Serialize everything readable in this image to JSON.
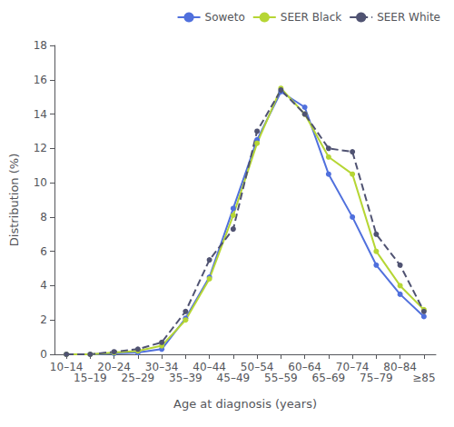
{
  "chart_data": {
    "type": "line",
    "xlabel": "Age at diagnosis (years)",
    "ylabel": "Distribution (%)",
    "categories": [
      "10–14",
      "15–19",
      "20–24",
      "25–29",
      "30–34",
      "35–39",
      "40–44",
      "45–49",
      "50–54",
      "55–59",
      "60–64",
      "65–69",
      "70–74",
      "75–79",
      "80–84",
      "≥85"
    ],
    "series": [
      {
        "name": "Soweto",
        "line_style": "solid",
        "marker": "circle",
        "values": [
          0.0,
          0.0,
          0.05,
          0.1,
          0.3,
          2.1,
          4.5,
          8.5,
          12.5,
          15.3,
          14.4,
          10.5,
          8.0,
          5.2,
          3.5,
          2.2
        ]
      },
      {
        "name": "SEER Black",
        "line_style": "solid",
        "marker": "circle",
        "values": [
          0.0,
          0.0,
          0.1,
          0.2,
          0.5,
          2.0,
          4.4,
          8.1,
          12.3,
          15.5,
          14.0,
          11.5,
          10.5,
          6.0,
          4.0,
          2.6
        ]
      },
      {
        "name": "SEER White",
        "line_style": "dashed",
        "marker": "circle",
        "values": [
          0.0,
          0.0,
          0.15,
          0.3,
          0.7,
          2.5,
          5.5,
          7.3,
          13.0,
          15.4,
          14.0,
          12.0,
          11.8,
          7.0,
          5.2,
          2.5
        ]
      }
    ],
    "ylim": [
      0,
      18
    ],
    "yticks": [
      0,
      2,
      4,
      6,
      8,
      10,
      12,
      14,
      16,
      18
    ],
    "legend": "upper right",
    "grid": false
  }
}
